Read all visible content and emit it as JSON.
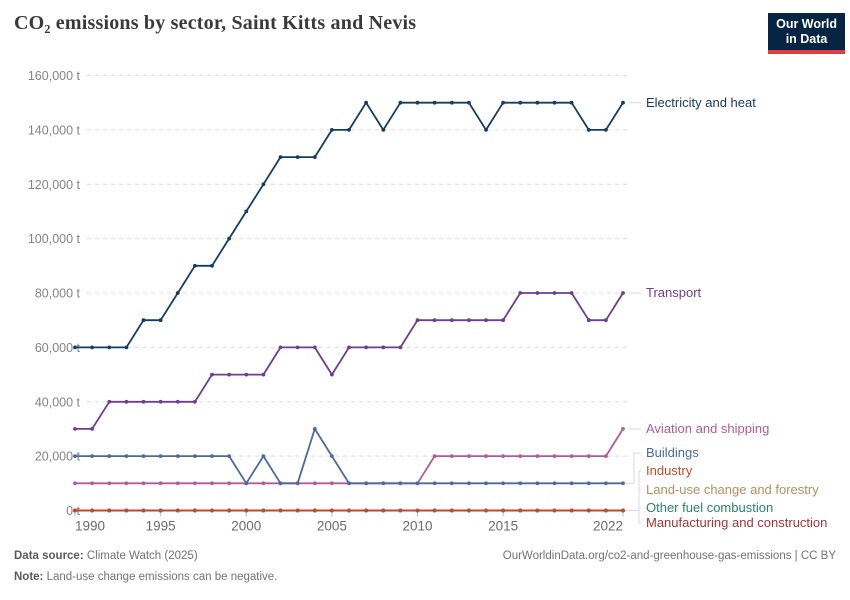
{
  "header": {
    "title": "CO₂ emissions by sector, Saint Kitts and Nevis",
    "logo": {
      "line1": "Our World",
      "line2": "in Data"
    }
  },
  "chart_data": {
    "type": "line",
    "title": "CO₂ emissions by sector, Saint Kitts and Nevis",
    "unit": "t",
    "x": [
      1990,
      1991,
      1992,
      1993,
      1994,
      1995,
      1996,
      1997,
      1998,
      1999,
      2000,
      2001,
      2002,
      2003,
      2004,
      2005,
      2006,
      2007,
      2008,
      2009,
      2010,
      2011,
      2012,
      2013,
      2014,
      2015,
      2016,
      2017,
      2018,
      2019,
      2020,
      2021,
      2022
    ],
    "x_ticks": [
      1990,
      1995,
      2000,
      2005,
      2010,
      2015,
      2022
    ],
    "y_ticks": [
      0,
      20000,
      40000,
      60000,
      80000,
      100000,
      120000,
      140000,
      160000
    ],
    "y_tick_labels": [
      "0 t",
      "20,000 t",
      "40,000 t",
      "60,000 t",
      "80,000 t",
      "100,000 t",
      "120,000 t",
      "140,000 t",
      "160,000 t"
    ],
    "ylim": [
      0,
      160000
    ],
    "grid": "dashed-horizontal",
    "legend_position": "right-of-lines",
    "series": [
      {
        "name": "Electricity and heat",
        "color": "#173c63",
        "values": [
          60000,
          60000,
          60000,
          60000,
          70000,
          70000,
          80000,
          90000,
          90000,
          100000,
          110000,
          120000,
          130000,
          130000,
          130000,
          140000,
          140000,
          150000,
          140000,
          150000,
          150000,
          150000,
          150000,
          150000,
          140000,
          150000,
          150000,
          150000,
          150000,
          150000,
          140000,
          140000,
          150000
        ]
      },
      {
        "name": "Transport",
        "color": "#6d3e91",
        "values": [
          30000,
          30000,
          40000,
          40000,
          40000,
          40000,
          40000,
          40000,
          50000,
          50000,
          50000,
          50000,
          60000,
          60000,
          60000,
          50000,
          60000,
          60000,
          60000,
          60000,
          70000,
          70000,
          70000,
          70000,
          70000,
          70000,
          80000,
          80000,
          80000,
          80000,
          70000,
          70000,
          80000
        ]
      },
      {
        "name": "Aviation and shipping",
        "color": "#b5599f",
        "values": [
          10000,
          10000,
          10000,
          10000,
          10000,
          10000,
          10000,
          10000,
          10000,
          10000,
          10000,
          10000,
          10000,
          10000,
          10000,
          10000,
          10000,
          10000,
          10000,
          10000,
          10000,
          20000,
          20000,
          20000,
          20000,
          20000,
          20000,
          20000,
          20000,
          20000,
          20000,
          20000,
          30000
        ]
      },
      {
        "name": "Buildings",
        "color": "#4c6a9c",
        "values": [
          20000,
          20000,
          20000,
          20000,
          20000,
          20000,
          20000,
          20000,
          20000,
          20000,
          10000,
          20000,
          10000,
          10000,
          30000,
          20000,
          10000,
          10000,
          10000,
          10000,
          10000,
          10000,
          10000,
          10000,
          10000,
          10000,
          10000,
          10000,
          10000,
          10000,
          10000,
          10000,
          10000
        ]
      },
      {
        "name": "Industry",
        "color": "#c14b27",
        "values": [
          0,
          0,
          0,
          0,
          0,
          0,
          0,
          0,
          0,
          0,
          0,
          0,
          0,
          0,
          0,
          0,
          0,
          0,
          0,
          0,
          0,
          0,
          0,
          0,
          0,
          0,
          0,
          0,
          0,
          0,
          0,
          0,
          0
        ]
      },
      {
        "name": "Land-use change and forestry",
        "color": "#b58e60",
        "values": [
          0,
          0,
          0,
          0,
          0,
          0,
          0,
          0,
          0,
          0,
          0,
          0,
          0,
          0,
          0,
          0,
          0,
          0,
          0,
          0,
          0,
          0,
          0,
          0,
          0,
          0,
          0,
          0,
          0,
          0,
          0,
          0,
          0
        ]
      },
      {
        "name": "Other fuel combustion",
        "color": "#2c8465",
        "values": [
          0,
          0,
          0,
          0,
          0,
          0,
          0,
          0,
          0,
          0,
          0,
          0,
          0,
          0,
          0,
          0,
          0,
          0,
          0,
          0,
          0,
          0,
          0,
          0,
          0,
          0,
          0,
          0,
          0,
          0,
          0,
          0,
          0
        ]
      },
      {
        "name": "Manufacturing and construction",
        "color": "#a2353a",
        "values": [
          0,
          0,
          0,
          0,
          0,
          0,
          0,
          0,
          0,
          0,
          0,
          0,
          0,
          0,
          0,
          0,
          0,
          0,
          0,
          0,
          0,
          0,
          0,
          0,
          0,
          0,
          0,
          0,
          0,
          0,
          0,
          0,
          0
        ]
      }
    ]
  },
  "footer": {
    "datasource_label": "Data source:",
    "datasource_value": " Climate Watch (2025)",
    "citation": "OurWorldinData.org/co2-and-greenhouse-gas-emissions | CC BY",
    "note_label": "Note:",
    "note_value": " Land-use change emissions can be negative."
  }
}
